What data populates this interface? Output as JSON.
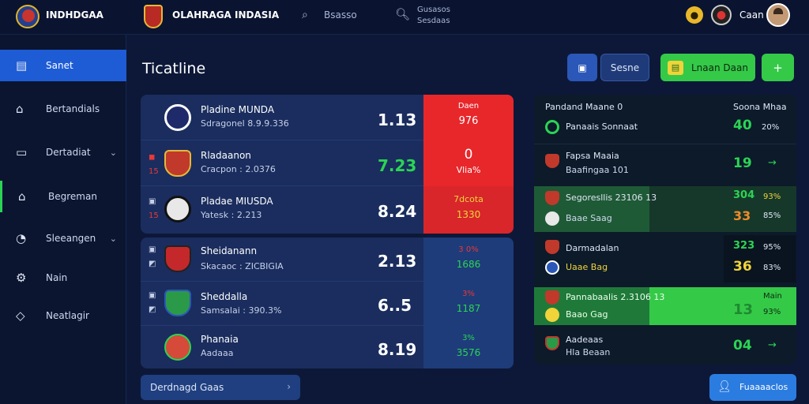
{
  "header": {
    "brand": "INDHDGAA",
    "app_title": "OLAHRAGA INDASIA",
    "search_label": "Bsasso",
    "stats_line1": "Gusasos",
    "stats_line2": "Sesdaas",
    "user_name": "Caan"
  },
  "sidebar": {
    "items": [
      {
        "label": "Sanet",
        "icon": "news-icon"
      },
      {
        "label": "Bertandials",
        "icon": "home-icon"
      },
      {
        "label": "Dertadiat",
        "icon": "list-icon"
      },
      {
        "label": "Begreman",
        "icon": "house-icon"
      },
      {
        "label": "Sleeangen",
        "icon": "user-icon"
      },
      {
        "label": "Nain",
        "icon": "gear-icon"
      },
      {
        "label": "Neatlagir",
        "icon": "diamond-icon"
      }
    ]
  },
  "main": {
    "title": "Ticatline",
    "btn_scene": "Sesne",
    "btn_green": "Lnaan Daan",
    "btn_plus": "+"
  },
  "matches_top": [
    {
      "name": "Pladine MUNDA",
      "sub": "Sdragonel 8.9.9.336",
      "score": "1.13",
      "odds_top": "Daen",
      "odds_bot": "976",
      "color": "#1f2a6a"
    },
    {
      "name": "Rladaanon",
      "sub": "Cracpon : 2.0376",
      "score": "7.23",
      "odds_top": "0",
      "odds_bot": "Vlia%",
      "color": "#c0392b"
    },
    {
      "name": "Pladae MIUSDA",
      "sub": "Yatesk : 2.213",
      "score": "8.24",
      "odds_top": "7dcota",
      "odds_bot": "1330",
      "color": "#e8e8e8"
    }
  ],
  "matches_bottom": [
    {
      "name": "Sheidanann",
      "sub": "Skacaoc : ZICBIGIA",
      "score": "2.13",
      "odds_top": "3 0%",
      "odds_bot": "1686",
      "color": "#c4282a"
    },
    {
      "name": "Sheddalla",
      "sub": "Samsalai : 390.3%",
      "score": "6..5",
      "odds_top": "3%",
      "odds_bot": "1187",
      "color": "#2a9a48"
    },
    {
      "name": "Phanaia",
      "sub": "Aadaaa",
      "score": "8.19",
      "odds_top": "3%",
      "odds_bot": "3576",
      "color": "#d64a3a"
    }
  ],
  "right_panel": {
    "header_left": "Pandand Maane 0",
    "header_right": "Soona Mhaa",
    "rows": [
      {
        "label": "Panaais Sonnaat",
        "sub": "",
        "v1": "40",
        "p1": "20%",
        "v2": "",
        "p2": ""
      },
      {
        "label": "Fapsa Maaia",
        "sub": "Baafingaa 101",
        "v1": "19",
        "p1": "→",
        "v2": "",
        "p2": ""
      },
      {
        "label": "Segoresllis 23106 13",
        "sub": "Baae Saag",
        "v1": "304",
        "p1": "93%",
        "v2": "33",
        "p2": "85%"
      },
      {
        "label": "Darmadalan",
        "sub": "Uaae Bag",
        "v1": "323",
        "p1": "95%",
        "v2": "36",
        "p2": "83%"
      },
      {
        "label": "Pannabaalis 2.3106 13",
        "sub": "Baao Gag",
        "v1": "13",
        "p1": "93%",
        "v2": "Main",
        "p2": ""
      },
      {
        "label": "Aadeaas",
        "sub": "Hla Beaan",
        "v1": "04",
        "p1": "→",
        "v2": "",
        "p2": ""
      }
    ]
  },
  "bottom": {
    "left_btn": "Derdnagd Gaas",
    "right_btn": "Fuaaaaclos"
  }
}
